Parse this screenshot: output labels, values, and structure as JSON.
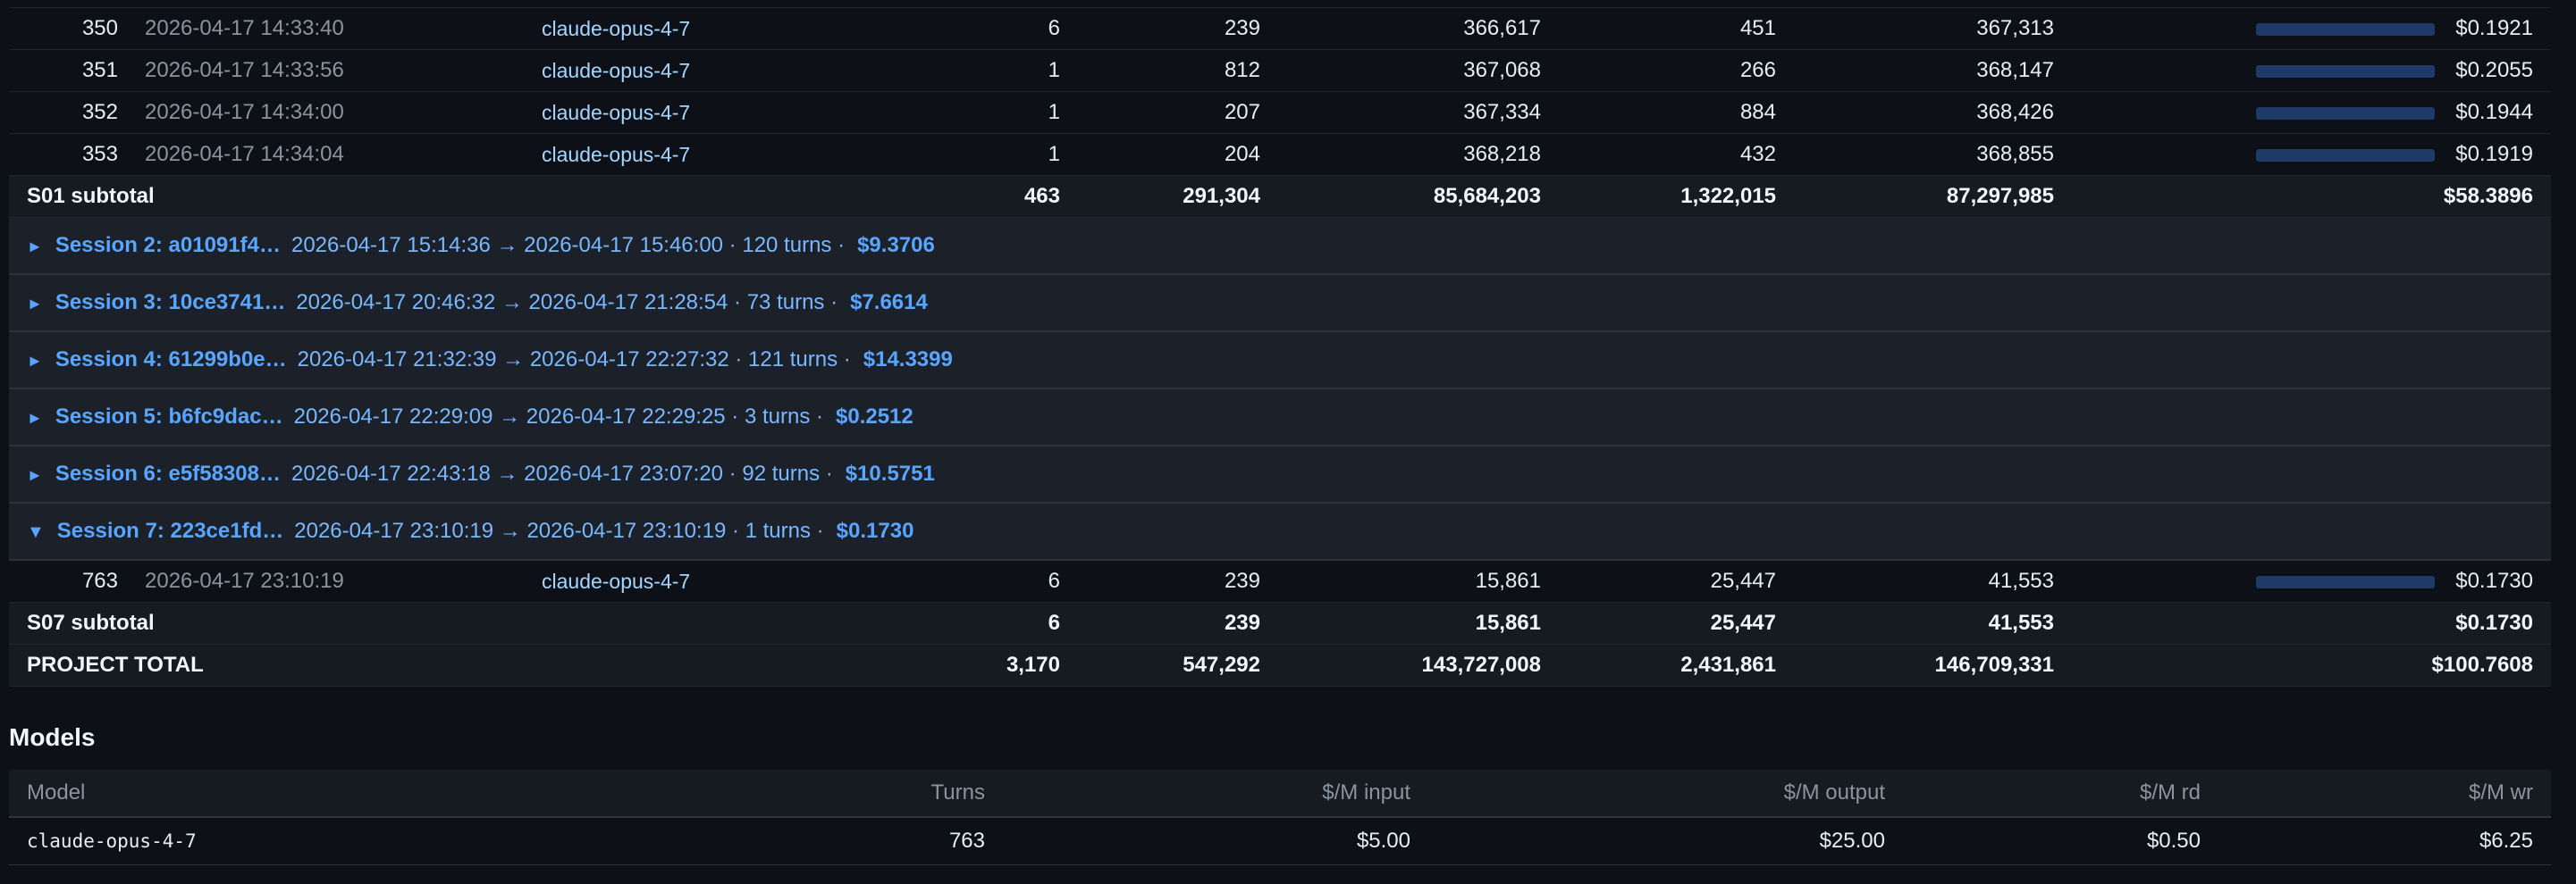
{
  "rows_top": [
    {
      "turn": "350",
      "ts": "2026-04-17 14:33:40",
      "model": "claude-opus-4-7",
      "c1": "6",
      "c2": "239",
      "c3": "366,617",
      "c4": "451",
      "c5": "367,313",
      "cost": "$0.1921"
    },
    {
      "turn": "351",
      "ts": "2026-04-17 14:33:56",
      "model": "claude-opus-4-7",
      "c1": "1",
      "c2": "812",
      "c3": "367,068",
      "c4": "266",
      "c5": "368,147",
      "cost": "$0.2055"
    },
    {
      "turn": "352",
      "ts": "2026-04-17 14:34:00",
      "model": "claude-opus-4-7",
      "c1": "1",
      "c2": "207",
      "c3": "367,334",
      "c4": "884",
      "c5": "368,426",
      "cost": "$0.1944"
    },
    {
      "turn": "353",
      "ts": "2026-04-17 14:34:04",
      "model": "claude-opus-4-7",
      "c1": "1",
      "c2": "204",
      "c3": "368,218",
      "c4": "432",
      "c5": "368,855",
      "cost": "$0.1919"
    }
  ],
  "s01_subtotal": {
    "label": "S01 subtotal",
    "c1": "463",
    "c2": "291,304",
    "c3": "85,684,203",
    "c4": "1,322,015",
    "c5": "87,297,985",
    "cost": "$58.3896"
  },
  "sessions": [
    {
      "arrow": "►",
      "name": "Session 2: a01091f4…",
      "meta": "2026-04-17 15:14:36 → 2026-04-17 15:46:00 ·  120 turns ·",
      "cost": "$9.3706"
    },
    {
      "arrow": "►",
      "name": "Session 3: 10ce3741…",
      "meta": "2026-04-17 20:46:32 → 2026-04-17 21:28:54 ·  73 turns ·",
      "cost": "$7.6614"
    },
    {
      "arrow": "►",
      "name": "Session 4: 61299b0e…",
      "meta": "2026-04-17 21:32:39 → 2026-04-17 22:27:32 ·  121 turns ·",
      "cost": "$14.3399"
    },
    {
      "arrow": "►",
      "name": "Session 5: b6fc9dac…",
      "meta": "2026-04-17 22:29:09 → 2026-04-17 22:29:25 ·  3 turns ·",
      "cost": "$0.2512"
    },
    {
      "arrow": "►",
      "name": "Session 6: e5f58308…",
      "meta": "2026-04-17 22:43:18 → 2026-04-17 23:07:20 ·  92 turns ·",
      "cost": "$10.5751"
    },
    {
      "arrow": "▼",
      "name": "Session 7: 223ce1fd…",
      "meta": "2026-04-17 23:10:19 → 2026-04-17 23:10:19 ·  1 turns ·",
      "cost": "$0.1730"
    }
  ],
  "row_s7": {
    "turn": "763",
    "ts": "2026-04-17 23:10:19",
    "model": "claude-opus-4-7",
    "c1": "6",
    "c2": "239",
    "c3": "15,861",
    "c4": "25,447",
    "c5": "41,553",
    "cost": "$0.1730"
  },
  "s07_subtotal": {
    "label": "S07 subtotal",
    "c1": "6",
    "c2": "239",
    "c3": "15,861",
    "c4": "25,447",
    "c5": "41,553",
    "cost": "$0.1730"
  },
  "project_total": {
    "label": "PROJECT TOTAL",
    "c1": "3,170",
    "c2": "547,292",
    "c3": "143,727,008",
    "c4": "2,431,861",
    "c5": "146,709,331",
    "cost": "$100.7608"
  },
  "models": {
    "title": "Models",
    "headers": {
      "model": "Model",
      "turns": "Turns",
      "in": "$/M input",
      "out": "$/M output",
      "rd": "$/M rd",
      "wr": "$/M wr"
    },
    "rows": [
      {
        "model": "claude-opus-4-7",
        "turns": "763",
        "in": "$5.00",
        "out": "$25.00",
        "rd": "$0.50",
        "wr": "$6.25"
      }
    ]
  },
  "colors": {
    "bar": "#1f3a66",
    "link": "#58a6ff",
    "bg": "#0d1117"
  }
}
